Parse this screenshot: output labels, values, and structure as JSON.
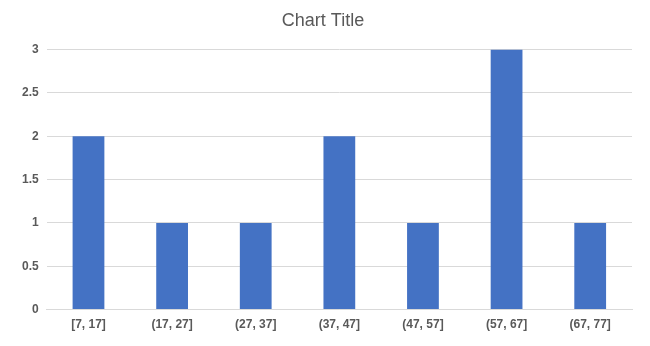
{
  "chart_data": {
    "type": "bar",
    "title": "Chart Title",
    "categories": [
      "[7, 17]",
      "(17, 27]",
      "(27, 37]",
      "(37, 47]",
      "(47, 57]",
      "(57, 67]",
      "(67, 77]"
    ],
    "values": [
      2,
      1,
      1,
      2,
      1,
      3,
      1
    ],
    "color": "#4472c4",
    "ylim": [
      0,
      3
    ],
    "yticks": [
      0,
      0.5,
      1,
      1.5,
      2,
      2.5,
      3
    ],
    "grid": true
  }
}
